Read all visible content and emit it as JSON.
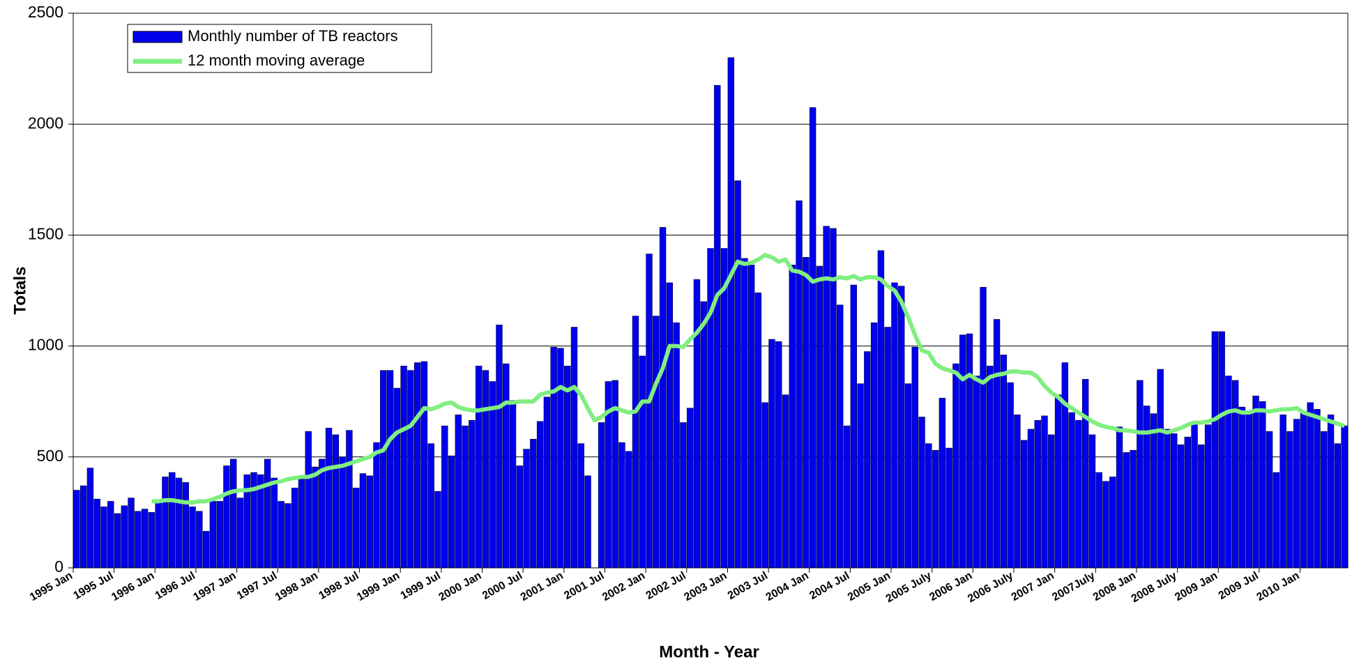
{
  "chart_data": {
    "type": "bar",
    "xlabel": "Month - Year",
    "ylabel": "Totals",
    "ylim": [
      0,
      2500
    ],
    "yticks": [
      0,
      500,
      1000,
      1500,
      2000,
      2500
    ],
    "grid": true,
    "legend": "upper left",
    "categories": [
      "1995 Jan",
      null,
      null,
      null,
      null,
      null,
      "1995 Jul",
      null,
      null,
      null,
      null,
      null,
      "1996 Jan",
      null,
      null,
      null,
      null,
      null,
      "1996 Jul",
      null,
      null,
      null,
      null,
      null,
      "1997 Jan",
      null,
      null,
      null,
      null,
      null,
      "1997 Jul",
      null,
      null,
      null,
      null,
      null,
      "1998 Jan",
      null,
      null,
      null,
      null,
      null,
      "1998 Jul",
      null,
      null,
      null,
      null,
      null,
      "1999 Jan",
      null,
      null,
      null,
      null,
      null,
      "1999 Jul",
      null,
      null,
      null,
      null,
      null,
      "2000 Jan",
      null,
      null,
      null,
      null,
      null,
      "2000 Jul",
      null,
      null,
      null,
      null,
      null,
      "2001 Jan",
      null,
      null,
      null,
      null,
      null,
      "2001 Jul",
      null,
      null,
      null,
      null,
      null,
      "2002 Jan",
      null,
      null,
      null,
      null,
      null,
      "2002 Jul",
      null,
      null,
      null,
      null,
      null,
      "2003 Jan",
      null,
      null,
      null,
      null,
      null,
      "2003 Jul",
      null,
      null,
      null,
      null,
      null,
      "2004 Jan",
      null,
      null,
      null,
      null,
      null,
      "2004 Jul",
      null,
      null,
      null,
      null,
      null,
      "2005 Jan",
      null,
      null,
      null,
      null,
      null,
      "2005 July",
      null,
      null,
      null,
      null,
      null,
      "2006 Jan",
      null,
      null,
      null,
      null,
      null,
      "2006 July",
      null,
      null,
      null,
      null,
      null,
      "2007 Jan",
      null,
      null,
      null,
      null,
      null,
      "2007July",
      null,
      null,
      null,
      null,
      null,
      "2008 Jan",
      null,
      null,
      null,
      null,
      null,
      "2008  July",
      null,
      null,
      null,
      null,
      null,
      "2009 Jan",
      null,
      null,
      null,
      null,
      null,
      "2009 Jul",
      null,
      null,
      null,
      null,
      null,
      "2010 Jan",
      null,
      null,
      null,
      null,
      null,
      null
    ],
    "series": [
      {
        "name": "Monthly number of TB reactors",
        "type": "bar",
        "color": "#0000ee",
        "values": [
          350,
          370,
          450,
          310,
          275,
          300,
          245,
          280,
          315,
          255,
          265,
          250,
          300,
          410,
          430,
          405,
          385,
          275,
          255,
          165,
          300,
          300,
          460,
          490,
          315,
          420,
          430,
          420,
          490,
          405,
          300,
          290,
          360,
          400,
          615,
          455,
          490,
          630,
          600,
          500,
          620,
          360,
          425,
          415,
          565,
          890,
          890,
          810,
          910,
          890,
          925,
          930,
          560,
          345,
          640,
          505,
          690,
          640,
          665,
          910,
          890,
          840,
          1095,
          920,
          755,
          460,
          535,
          580,
          660,
          770,
          995,
          990,
          910,
          1085,
          560,
          415,
          0,
          655,
          840,
          845,
          565,
          525,
          1135,
          955,
          1415,
          1135,
          1535,
          1285,
          1105,
          655,
          720,
          1300,
          1200,
          1440,
          2175,
          1440,
          2300,
          1745,
          1395,
          1365,
          1240,
          745,
          1030,
          1020,
          780,
          1365,
          1655,
          1400,
          2075,
          1360,
          1540,
          1530,
          1185,
          640,
          1275,
          830,
          975,
          1105,
          1430,
          1085,
          1285,
          1270,
          830,
          995,
          680,
          560,
          530,
          765,
          540,
          920,
          1050,
          1055,
          865,
          1265,
          910,
          1120,
          960,
          835,
          690,
          575,
          625,
          665,
          685,
          600,
          780,
          925,
          700,
          665,
          850,
          600,
          430,
          390,
          410,
          635,
          520,
          530,
          845,
          730,
          695,
          895,
          625,
          605,
          555,
          590,
          650,
          555,
          645,
          1065,
          1065,
          865,
          845,
          725,
          700,
          775,
          750,
          615,
          430,
          690,
          615,
          670,
          705,
          745,
          715,
          615,
          690,
          560,
          640
        ]
      },
      {
        "name": "12 month moving average",
        "type": "line",
        "color": "#80ee80",
        "values": [
          null,
          null,
          null,
          null,
          null,
          null,
          null,
          null,
          null,
          null,
          null,
          300,
          300,
          305,
          305,
          300,
          295,
          295,
          300,
          300,
          310,
          320,
          335,
          345,
          350,
          350,
          355,
          365,
          375,
          385,
          390,
          400,
          405,
          410,
          410,
          420,
          440,
          450,
          455,
          460,
          470,
          480,
          490,
          500,
          520,
          530,
          580,
          610,
          625,
          640,
          680,
          720,
          715,
          725,
          740,
          745,
          725,
          715,
          710,
          710,
          715,
          720,
          725,
          745,
          745,
          750,
          750,
          750,
          780,
          790,
          795,
          815,
          800,
          815,
          780,
          720,
          665,
          680,
          705,
          720,
          710,
          700,
          705,
          750,
          750,
          830,
          900,
          1000,
          1000,
          995,
          1030,
          1060,
          1100,
          1150,
          1230,
          1260,
          1320,
          1380,
          1370,
          1375,
          1390,
          1410,
          1400,
          1380,
          1390,
          1340,
          1335,
          1320,
          1290,
          1300,
          1305,
          1300,
          1310,
          1305,
          1315,
          1300,
          1310,
          1310,
          1300,
          1270,
          1250,
          1200,
          1130,
          1050,
          980,
          970,
          920,
          900,
          890,
          880,
          850,
          870,
          850,
          835,
          860,
          870,
          875,
          885,
          885,
          880,
          880,
          860,
          820,
          790,
          770,
          740,
          720,
          700,
          680,
          660,
          645,
          635,
          630,
          620,
          620,
          615,
          610,
          610,
          615,
          620,
          610,
          620,
          630,
          645,
          655,
          655,
          660,
          670,
          690,
          705,
          710,
          700,
          700,
          710,
          710,
          705,
          710,
          715,
          715,
          720,
          700,
          690,
          680,
          670,
          660,
          650,
          640
        ]
      }
    ]
  }
}
